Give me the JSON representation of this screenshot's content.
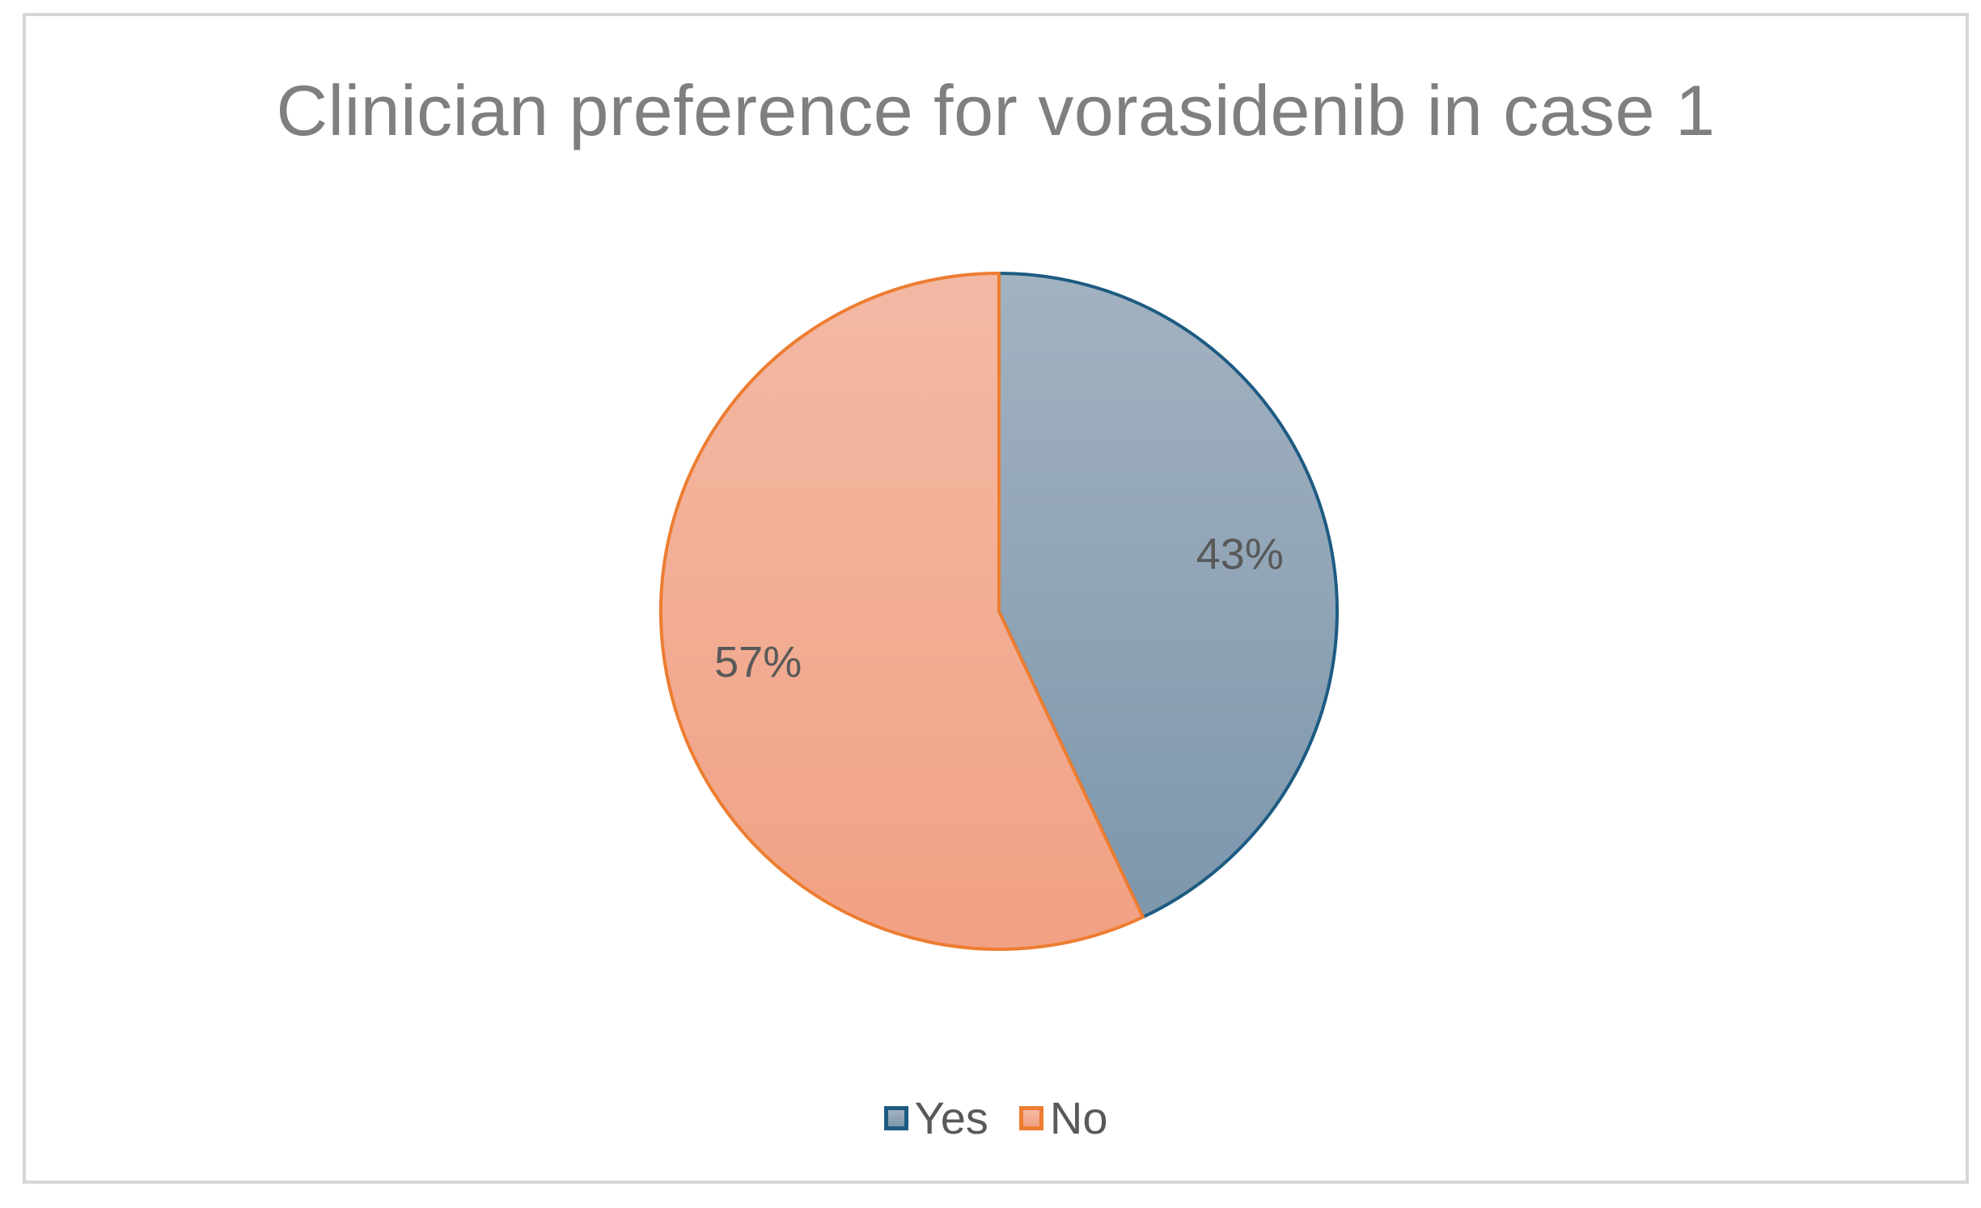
{
  "chart_data": {
    "type": "pie",
    "title": "Clinician preference for vorasidenib in case 1",
    "categories": [
      "Yes",
      "No"
    ],
    "values": [
      43,
      57
    ],
    "labels": [
      "43%",
      "57%"
    ],
    "unit": "%",
    "legend_position": "bottom",
    "colors": {
      "Yes": {
        "fill_top": "#a3b2c0",
        "fill_bottom": "#7d97ad",
        "stroke": "#1d5b82"
      },
      "No": {
        "fill_top": "#f3b9a5",
        "fill_bottom": "#f2a183",
        "stroke": "#ed7d31"
      }
    }
  }
}
